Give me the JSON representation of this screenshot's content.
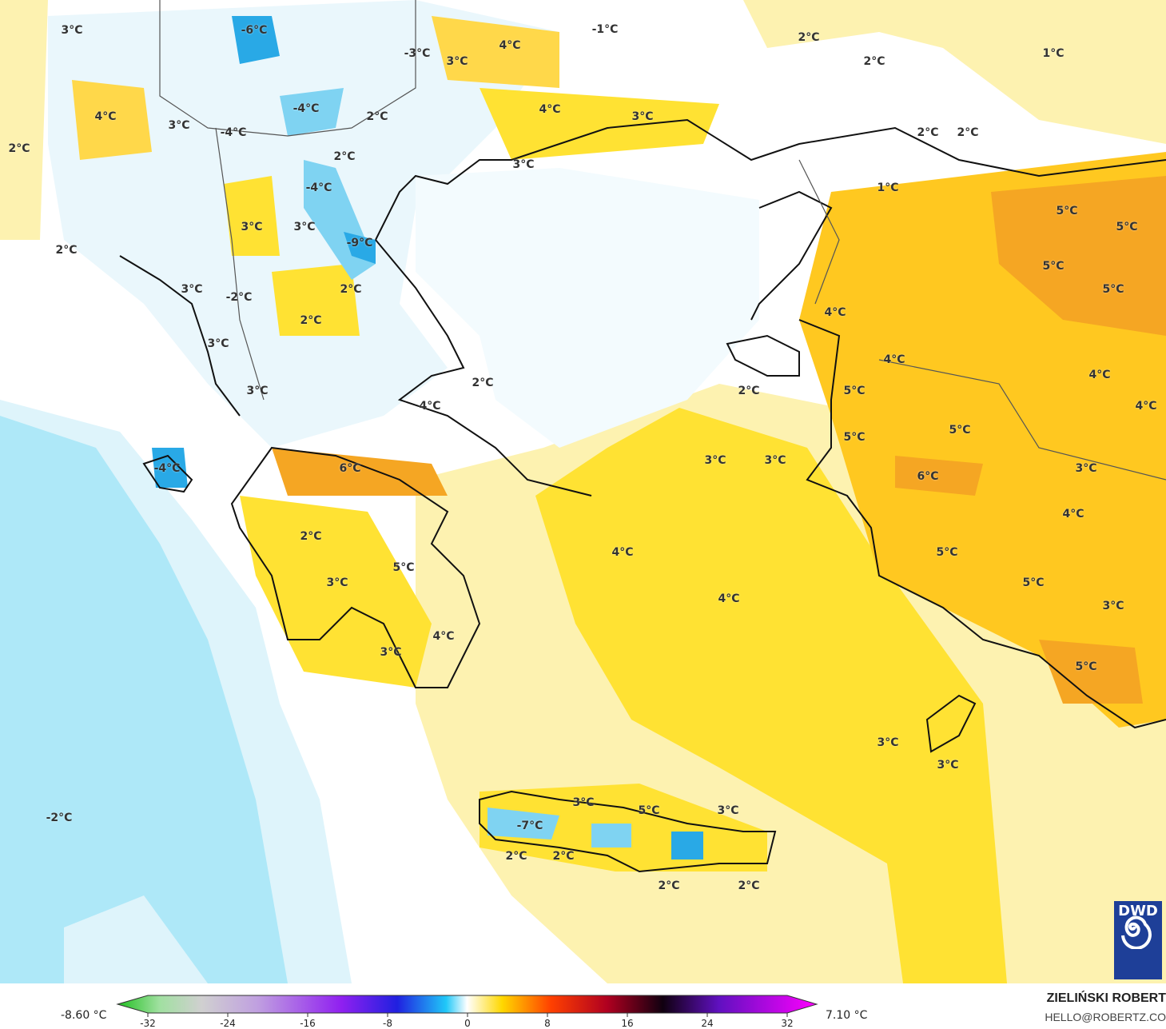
{
  "map": {
    "colors": {
      "sea_cold": "#aee8f8",
      "sea_cool": "#def4fb",
      "pale_warm": "#fdf2b0",
      "warm": "#ffe233",
      "warmer": "#ffc820",
      "hot": "#f5a623",
      "cold": "#7fd3f2",
      "very_cold": "#29a9e6"
    },
    "labels": [
      "3°C",
      "-6°C",
      "-3°C",
      "3°C",
      "4°C",
      "-1°C",
      "2°C",
      "2°C",
      "1°C",
      "4°C",
      "3°C",
      "-4°C",
      "-4°C",
      "2°C",
      "4°C",
      "3°C",
      "2°C",
      "2°C",
      "2°C",
      "2°C",
      "3°C",
      "-4°C",
      "1°C",
      "5°C",
      "5°C",
      "3°C",
      "3°C",
      "-9°C",
      "2°C",
      "5°C",
      "3°C",
      "-2°C",
      "2°C",
      "5°C",
      "2°C",
      "4°C",
      "3°C",
      "4°C",
      "4°C",
      "2°C",
      "2°C",
      "5°C",
      "3°C",
      "4°C",
      "4°C",
      "5°C",
      "5°C",
      "3°C",
      "3°C",
      "6°C",
      "-4°C",
      "3°C",
      "6°C",
      "4°C",
      "2°C",
      "4°C",
      "5°C",
      "5°C",
      "3°C",
      "5°C",
      "4°C",
      "3°C",
      "4°C",
      "3°C",
      "5°C",
      "3°C",
      "3°C",
      "3°C",
      "5°C",
      "3°C",
      "-7°C",
      "-2°C",
      "2°C",
      "2°C",
      "2°C",
      "2°C"
    ]
  },
  "logo": {
    "text": "DWD",
    "icon": "spiral-icon"
  },
  "colorbar": {
    "min_label": "-8.60 °C",
    "max_label": "7.10 °C",
    "ticks": [
      "-32",
      "-24",
      "-16",
      "-8",
      "0",
      "8",
      "16",
      "24",
      "32"
    ]
  },
  "credit": {
    "author": "ZIELIŃSKI ROBERT",
    "email": "HELLO@ROBERTZ.CO"
  }
}
